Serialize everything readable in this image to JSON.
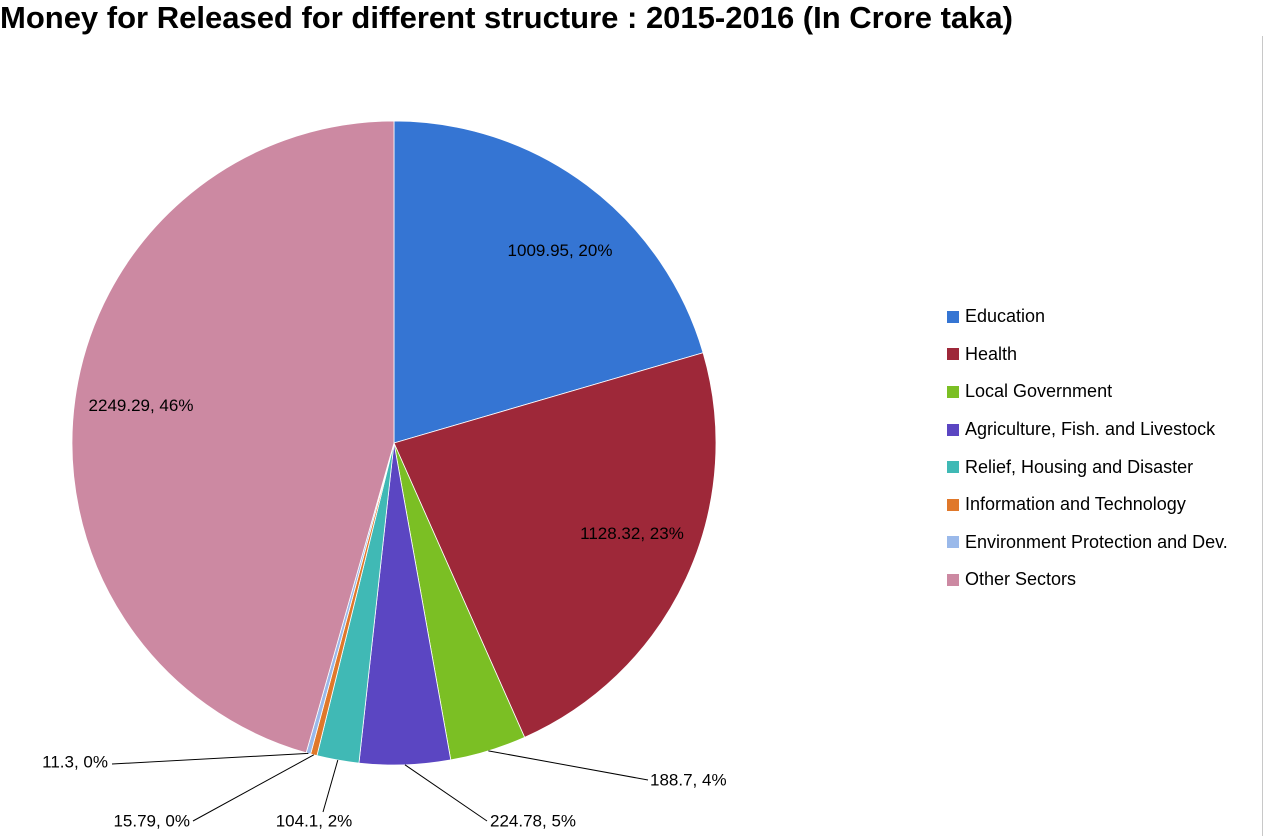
{
  "title": "Money for Released for different structure : 2015-2016 (In Crore taka)",
  "chart_data": {
    "type": "pie",
    "title": "Money for Released for different structure : 2015-2016 (In Crore taka)",
    "unit": "Crore taka",
    "legend_position": "right",
    "slices": [
      {
        "name": "Education",
        "value": 1009.95,
        "percent_label": "20%",
        "data_label": "1009.95, 20%",
        "color": "#3575d3"
      },
      {
        "name": "Health",
        "value": 1128.32,
        "percent_label": "23%",
        "data_label": "1128.32, 23%",
        "color": "#9e2839"
      },
      {
        "name": "Local Government",
        "value": 188.7,
        "percent_label": "4%",
        "data_label": "188.7, 4%",
        "color": "#7bbf24"
      },
      {
        "name": "Agriculture, Fish. and Livestock",
        "value": 224.78,
        "percent_label": "5%",
        "data_label": "224.78, 5%",
        "color": "#5b46c2"
      },
      {
        "name": "Relief, Housing and Disaster",
        "value": 104.1,
        "percent_label": "2%",
        "data_label": "104.1, 2%",
        "color": "#40b9b5"
      },
      {
        "name": "Information and Technology",
        "value": 15.79,
        "percent_label": "0%",
        "data_label": "15.79, 0%",
        "color": "#e0782a"
      },
      {
        "name": "Environment Protection and Dev.",
        "value": 11.3,
        "percent_label": "0%",
        "data_label": "11.3, 0%",
        "color": "#9ab9ea"
      },
      {
        "name": " Other Sectors",
        "value": 2249.29,
        "percent_label": "46%",
        "data_label": "2249.29, 46%",
        "color": "#cc89a2"
      }
    ]
  }
}
